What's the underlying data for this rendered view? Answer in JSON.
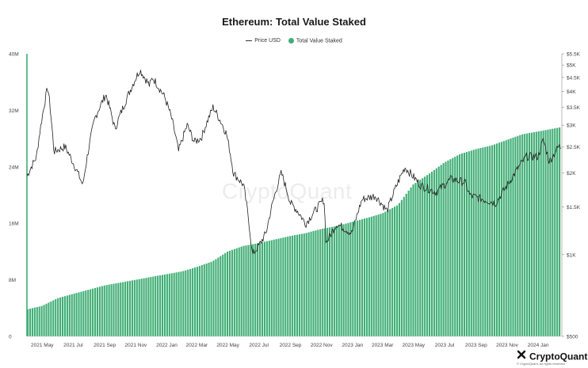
{
  "chart_data": {
    "type": "bar+line",
    "title": "Ethereum: Total Value Staked",
    "legend": {
      "placement": "top-center",
      "entries": [
        "Price USD",
        "Total Value Staked"
      ]
    },
    "grid": false,
    "colors": {
      "staked": "#3fae74",
      "price": "#222222"
    },
    "x_ticks": [
      "2021 May",
      "2021 Jul",
      "2021 Sep",
      "2021 Nov",
      "2022 Jan",
      "2022 Mar",
      "2022 May",
      "2022 Jul",
      "2022 Sep",
      "2022 Nov",
      "2023 Jan",
      "2023 Mar",
      "2023 May",
      "2023 Jul",
      "2023 Sep",
      "2023 Nov",
      "2024 Jan"
    ],
    "x_range": [
      "2021-04-01",
      "2024-02-15"
    ],
    "left_axis": {
      "ticks": [
        "0",
        "8M",
        "16M",
        "24M",
        "32M",
        "40M"
      ],
      "values": [
        0,
        8,
        16,
        24,
        32,
        40
      ],
      "unit": "millions ETH",
      "range": [
        0,
        40
      ]
    },
    "right_axis": {
      "scale": "log",
      "ticks": [
        "$500",
        "$1K",
        "$1.5K",
        "$2K",
        "$2.5K",
        "$3K",
        "$3.5K",
        "$4K",
        "$4.5K",
        "$5K",
        "$5.5K"
      ],
      "values": [
        500,
        1000,
        1500,
        2000,
        2500,
        3000,
        3500,
        4000,
        4500,
        5000,
        5500
      ],
      "range": [
        500,
        5500
      ]
    },
    "series": [
      {
        "name": "Total Value Staked",
        "type": "bar",
        "x": [
          "2021-04-01",
          "2021-05-01",
          "2021-06-01",
          "2021-07-01",
          "2021-08-01",
          "2021-09-01",
          "2021-10-01",
          "2021-11-01",
          "2021-12-01",
          "2022-01-01",
          "2022-02-01",
          "2022-03-01",
          "2022-04-01",
          "2022-05-01",
          "2022-06-01",
          "2022-07-01",
          "2022-08-01",
          "2022-09-01",
          "2022-10-01",
          "2022-11-01",
          "2022-12-01",
          "2023-01-01",
          "2023-02-01",
          "2023-03-01",
          "2023-04-01",
          "2023-05-01",
          "2023-06-01",
          "2023-07-01",
          "2023-08-01",
          "2023-09-01",
          "2023-10-01",
          "2023-11-01",
          "2023-12-01",
          "2024-01-01",
          "2024-02-15"
        ],
        "y": [
          3.8,
          4.3,
          5.4,
          6.0,
          6.6,
          7.2,
          7.6,
          8.0,
          8.4,
          8.8,
          9.2,
          9.8,
          10.6,
          12.0,
          12.8,
          13.2,
          13.7,
          14.2,
          14.6,
          15.2,
          15.6,
          16.2,
          16.8,
          17.4,
          18.6,
          21.5,
          23.0,
          24.6,
          25.8,
          26.5,
          27.0,
          27.8,
          28.6,
          29.0,
          29.6
        ]
      },
      {
        "name": "Price USD",
        "type": "line",
        "x": [
          "2021-04-01",
          "2021-04-20",
          "2021-05-12",
          "2021-05-24",
          "2021-06-15",
          "2021-07-20",
          "2021-08-13",
          "2021-09-03",
          "2021-09-21",
          "2021-10-10",
          "2021-11-09",
          "2021-11-28",
          "2021-12-04",
          "2021-12-28",
          "2022-01-10",
          "2022-01-24",
          "2022-02-10",
          "2022-02-24",
          "2022-03-10",
          "2022-04-02",
          "2022-04-28",
          "2022-05-12",
          "2022-06-01",
          "2022-06-18",
          "2022-07-01",
          "2022-07-15",
          "2022-08-14",
          "2022-09-01",
          "2022-09-15",
          "2022-10-01",
          "2022-10-25",
          "2022-11-06",
          "2022-11-10",
          "2022-12-01",
          "2022-12-31",
          "2023-01-20",
          "2023-02-15",
          "2023-03-10",
          "2023-04-14",
          "2023-05-15",
          "2023-06-15",
          "2023-07-13",
          "2023-08-10",
          "2023-08-20",
          "2023-09-15",
          "2023-10-10",
          "2023-11-01",
          "2023-11-20",
          "2023-12-09",
          "2024-01-01",
          "2024-01-11",
          "2024-01-23",
          "2024-02-10",
          "2024-02-15"
        ],
        "y": [
          1950,
          2300,
          4150,
          2400,
          2500,
          1800,
          3200,
          3900,
          2900,
          3600,
          4800,
          4200,
          4500,
          3800,
          3200,
          2400,
          3000,
          2600,
          2700,
          3500,
          2800,
          2000,
          1800,
          1000,
          1080,
          1200,
          2000,
          1550,
          1450,
          1300,
          1500,
          1600,
          1100,
          1300,
          1200,
          1600,
          1650,
          1450,
          2100,
          1800,
          1700,
          1900,
          1850,
          1650,
          1600,
          1550,
          1800,
          2050,
          2300,
          2300,
          2650,
          2200,
          2500,
          2500
        ]
      }
    ],
    "watermark": "CryptoQuant"
  },
  "brand": {
    "name": "CryptoQuant",
    "copyright": "© CryptoQuant. All rights reserved"
  }
}
